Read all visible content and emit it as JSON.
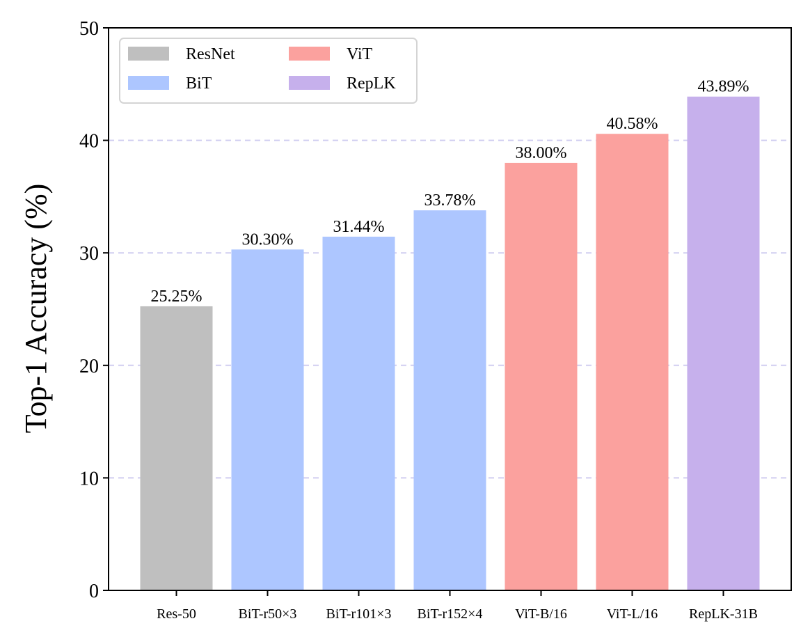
{
  "chart_data": {
    "type": "bar",
    "title": "",
    "xlabel": "",
    "ylabel": "Top-1 Accuracy (%)",
    "ylim": [
      0,
      50
    ],
    "yticks": [
      0,
      10,
      20,
      30,
      40,
      50
    ],
    "grid": "horizontal dashed",
    "legend_position": "top-left",
    "categories": [
      "Res-50",
      "BiT-r50×3",
      "BiT-r101×3",
      "BiT-r152×4",
      "ViT-B/16",
      "ViT-L/16",
      "RepLK-31B"
    ],
    "values": [
      25.25,
      30.3,
      31.44,
      33.78,
      38.0,
      40.58,
      43.89
    ],
    "value_labels": [
      "25.25%",
      "30.30%",
      "31.44%",
      "33.78%",
      "38.00%",
      "40.58%",
      "43.89%"
    ],
    "groups": [
      "ResNet",
      "BiT",
      "BiT",
      "BiT",
      "ViT",
      "ViT",
      "RepLK"
    ],
    "legend": [
      {
        "name": "ResNet",
        "color": "#bfbfbf"
      },
      {
        "name": "BiT",
        "color": "#adc6ff"
      },
      {
        "name": "ViT",
        "color": "#fba19e"
      },
      {
        "name": "RepLK",
        "color": "#c6b0ec"
      }
    ],
    "grid_color": "#d0cdf0"
  }
}
